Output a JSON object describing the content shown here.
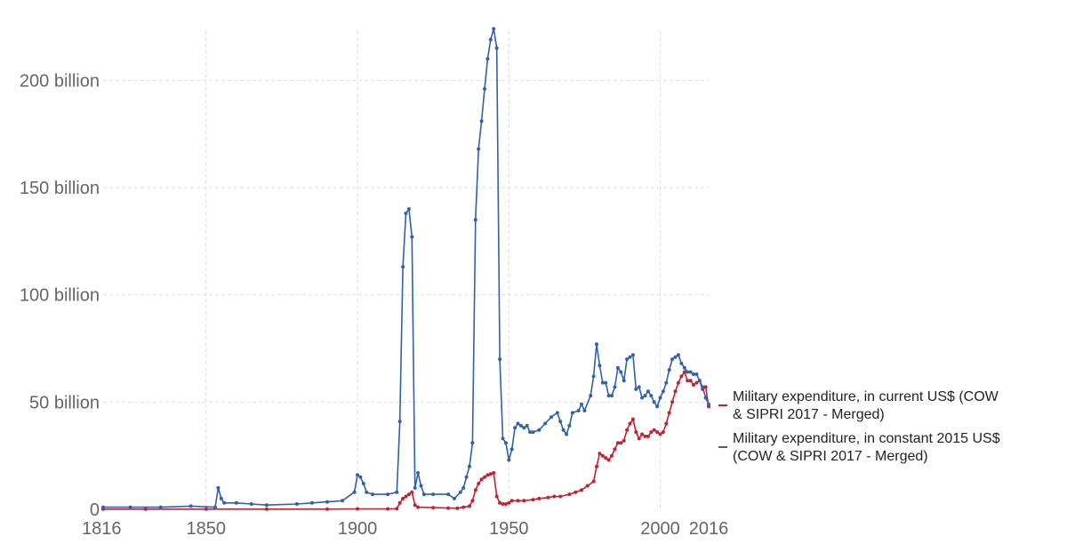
{
  "chart_data": {
    "type": "line",
    "title": "",
    "xlabel": "",
    "ylabel": "",
    "xlim": [
      1816,
      2016
    ],
    "ylim": [
      0,
      225000000000
    ],
    "grid": true,
    "legend_position": "right",
    "x_ticks": [
      1816,
      1850,
      1900,
      1950,
      2000,
      2016
    ],
    "x_tick_labels": [
      "1816",
      "1850",
      "1900",
      "1950",
      "2000",
      "2016"
    ],
    "y_ticks": [
      0,
      50000000000,
      100000000000,
      150000000000,
      200000000000
    ],
    "y_tick_labels": [
      "0",
      "50 billion",
      "100 billion",
      "150 billion",
      "200 billion"
    ],
    "series": [
      {
        "name": "Military expenditure, in current US$ (COW & SIPRI 2017 - Merged)",
        "legend_lines": [
          "Military expenditure, in current US$ (COW",
          "& SIPRI 2017 - Merged)"
        ],
        "color": "#c8202e",
        "points": [
          [
            1816,
            0.1
          ],
          [
            1830,
            0.1
          ],
          [
            1850,
            0.1
          ],
          [
            1870,
            0.1
          ],
          [
            1890,
            0.1
          ],
          [
            1900,
            0.2
          ],
          [
            1910,
            0.2
          ],
          [
            1913,
            0.3
          ],
          [
            1914,
            3
          ],
          [
            1915,
            5
          ],
          [
            1916,
            6
          ],
          [
            1917,
            7
          ],
          [
            1918,
            8
          ],
          [
            1919,
            2
          ],
          [
            1920,
            1
          ],
          [
            1925,
            0.8
          ],
          [
            1930,
            0.6
          ],
          [
            1933,
            0.5
          ],
          [
            1935,
            1
          ],
          [
            1937,
            1.5
          ],
          [
            1938,
            4
          ],
          [
            1939,
            9
          ],
          [
            1940,
            12
          ],
          [
            1941,
            14
          ],
          [
            1942,
            15
          ],
          [
            1943,
            16
          ],
          [
            1944,
            16.5
          ],
          [
            1945,
            17
          ],
          [
            1946,
            6
          ],
          [
            1947,
            3
          ],
          [
            1948,
            2.5
          ],
          [
            1949,
            2.5
          ],
          [
            1950,
            3
          ],
          [
            1951,
            4
          ],
          [
            1953,
            4
          ],
          [
            1955,
            4
          ],
          [
            1958,
            4.5
          ],
          [
            1960,
            5
          ],
          [
            1963,
            5.5
          ],
          [
            1965,
            6
          ],
          [
            1967,
            6
          ],
          [
            1970,
            7
          ],
          [
            1972,
            8
          ],
          [
            1974,
            9
          ],
          [
            1976,
            11
          ],
          [
            1978,
            13
          ],
          [
            1979,
            20
          ],
          [
            1980,
            26
          ],
          [
            1981,
            25
          ],
          [
            1982,
            24
          ],
          [
            1983,
            23
          ],
          [
            1984,
            25
          ],
          [
            1985,
            28
          ],
          [
            1986,
            31
          ],
          [
            1987,
            31
          ],
          [
            1988,
            32
          ],
          [
            1989,
            37
          ],
          [
            1990,
            40
          ],
          [
            1991,
            42
          ],
          [
            1992,
            36
          ],
          [
            1993,
            33
          ],
          [
            1994,
            35
          ],
          [
            1995,
            34
          ],
          [
            1996,
            34
          ],
          [
            1997,
            36
          ],
          [
            1998,
            37
          ],
          [
            1999,
            36
          ],
          [
            2000,
            35
          ],
          [
            2001,
            36
          ],
          [
            2002,
            40
          ],
          [
            2003,
            45
          ],
          [
            2004,
            50
          ],
          [
            2005,
            55
          ],
          [
            2006,
            59
          ],
          [
            2007,
            62
          ],
          [
            2008,
            64
          ],
          [
            2009,
            60
          ],
          [
            2010,
            60
          ],
          [
            2011,
            58
          ],
          [
            2012,
            59
          ],
          [
            2013,
            60
          ],
          [
            2014,
            56
          ],
          [
            2015,
            57
          ],
          [
            2016,
            48
          ]
        ]
      },
      {
        "name": "Military expenditure, in constant 2015 US$ (COW & SIPRI 2017 - Merged)",
        "legend_lines": [
          "Military expenditure, in constant 2015 US$",
          "(COW & SIPRI 2017 - Merged)"
        ],
        "color": "#3060b0",
        "points": [
          [
            1816,
            1
          ],
          [
            1825,
            1
          ],
          [
            1835,
            1
          ],
          [
            1845,
            1.5
          ],
          [
            1853,
            1
          ],
          [
            1854,
            10
          ],
          [
            1855,
            5
          ],
          [
            1856,
            3
          ],
          [
            1860,
            3
          ],
          [
            1865,
            2.5
          ],
          [
            1870,
            2
          ],
          [
            1880,
            2.5
          ],
          [
            1885,
            3
          ],
          [
            1890,
            3.5
          ],
          [
            1895,
            4
          ],
          [
            1899,
            8
          ],
          [
            1900,
            16
          ],
          [
            1901,
            15
          ],
          [
            1902,
            12
          ],
          [
            1903,
            8
          ],
          [
            1905,
            7
          ],
          [
            1910,
            7
          ],
          [
            1913,
            8
          ],
          [
            1914,
            41
          ],
          [
            1915,
            113
          ],
          [
            1916,
            138
          ],
          [
            1917,
            140
          ],
          [
            1918,
            127
          ],
          [
            1919,
            10
          ],
          [
            1920,
            17
          ],
          [
            1921,
            11
          ],
          [
            1922,
            7
          ],
          [
            1925,
            7
          ],
          [
            1930,
            7
          ],
          [
            1932,
            5
          ],
          [
            1934,
            8
          ],
          [
            1935,
            10
          ],
          [
            1936,
            15
          ],
          [
            1937,
            20
          ],
          [
            1938,
            31
          ],
          [
            1939,
            135
          ],
          [
            1940,
            168
          ],
          [
            1941,
            181
          ],
          [
            1942,
            196
          ],
          [
            1943,
            210
          ],
          [
            1944,
            219
          ],
          [
            1945,
            224
          ],
          [
            1946,
            215
          ],
          [
            1947,
            70
          ],
          [
            1948,
            33
          ],
          [
            1949,
            31
          ],
          [
            1950,
            23
          ],
          [
            1951,
            28
          ],
          [
            1952,
            38
          ],
          [
            1953,
            40
          ],
          [
            1954,
            39
          ],
          [
            1955,
            38
          ],
          [
            1956,
            39
          ],
          [
            1957,
            36
          ],
          [
            1958,
            36
          ],
          [
            1960,
            37
          ],
          [
            1962,
            40
          ],
          [
            1964,
            43
          ],
          [
            1966,
            45
          ],
          [
            1967,
            41
          ],
          [
            1968,
            37
          ],
          [
            1969,
            35
          ],
          [
            1970,
            39
          ],
          [
            1971,
            45
          ],
          [
            1973,
            46
          ],
          [
            1974,
            49
          ],
          [
            1975,
            46
          ],
          [
            1977,
            53
          ],
          [
            1978,
            62
          ],
          [
            1979,
            77
          ],
          [
            1980,
            67
          ],
          [
            1981,
            59
          ],
          [
            1982,
            59
          ],
          [
            1983,
            53
          ],
          [
            1984,
            53
          ],
          [
            1985,
            57
          ],
          [
            1986,
            66
          ],
          [
            1987,
            64
          ],
          [
            1988,
            60
          ],
          [
            1989,
            70
          ],
          [
            1990,
            71
          ],
          [
            1991,
            72
          ],
          [
            1992,
            56
          ],
          [
            1993,
            57
          ],
          [
            1994,
            52
          ],
          [
            1995,
            53
          ],
          [
            1996,
            55
          ],
          [
            1997,
            53
          ],
          [
            1998,
            50
          ],
          [
            1999,
            48
          ],
          [
            2000,
            52
          ],
          [
            2001,
            55
          ],
          [
            2002,
            59
          ],
          [
            2003,
            65
          ],
          [
            2004,
            70
          ],
          [
            2005,
            71
          ],
          [
            2006,
            72
          ],
          [
            2007,
            68
          ],
          [
            2008,
            66
          ],
          [
            2009,
            64
          ],
          [
            2010,
            64
          ],
          [
            2011,
            63
          ],
          [
            2012,
            63
          ],
          [
            2013,
            60
          ],
          [
            2014,
            57
          ],
          [
            2015,
            52
          ],
          [
            2016,
            49
          ]
        ]
      }
    ]
  }
}
